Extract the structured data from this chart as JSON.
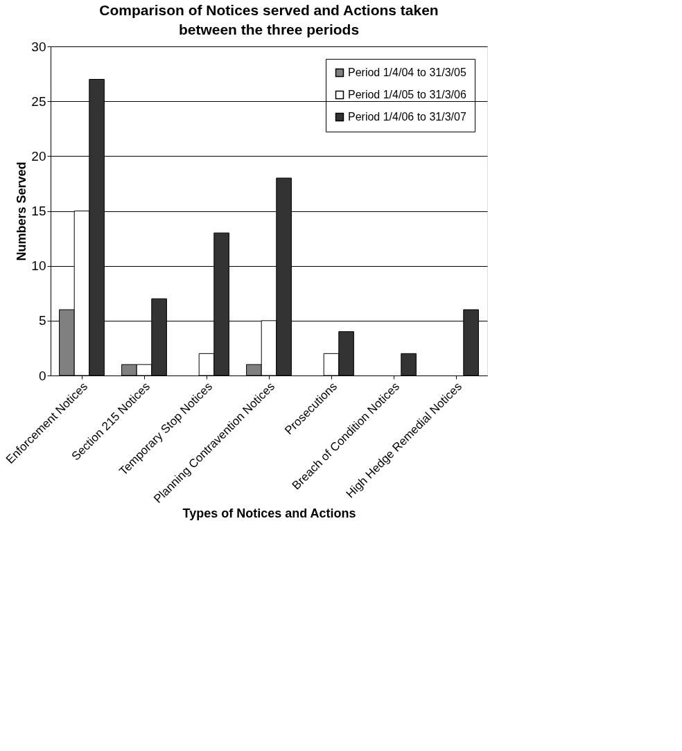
{
  "chart_data": {
    "type": "bar",
    "title": "Comparison of Notices served and Actions taken between the three periods",
    "xlabel": "Types of Notices and Actions",
    "ylabel": "Numbers Served",
    "categories": [
      "Enforcement Notices",
      "Section 215 Notices",
      "Temporary Stop Notices",
      "Planning Contravention Notices",
      "Prosecutions",
      "Breach of Condition Notices",
      "High Hedge Remedial Notices"
    ],
    "series": [
      {
        "name": "Period 1/4/04 to 31/3/05",
        "color": "#808080",
        "values": [
          6,
          1,
          0,
          1,
          0,
          0,
          0
        ]
      },
      {
        "name": "Period 1/4/05 to 31/3/06",
        "color": "#ffffff",
        "values": [
          15,
          1,
          2,
          5,
          2,
          0,
          0
        ]
      },
      {
        "name": "Period 1/4/06 to 31/3/07",
        "color": "#333333",
        "values": [
          27,
          7,
          13,
          18,
          4,
          2,
          6
        ]
      }
    ],
    "ylim": [
      0,
      30
    ],
    "yticks": [
      0,
      5,
      10,
      15,
      20,
      25,
      30
    ],
    "grid": "y",
    "legend": "top right"
  }
}
